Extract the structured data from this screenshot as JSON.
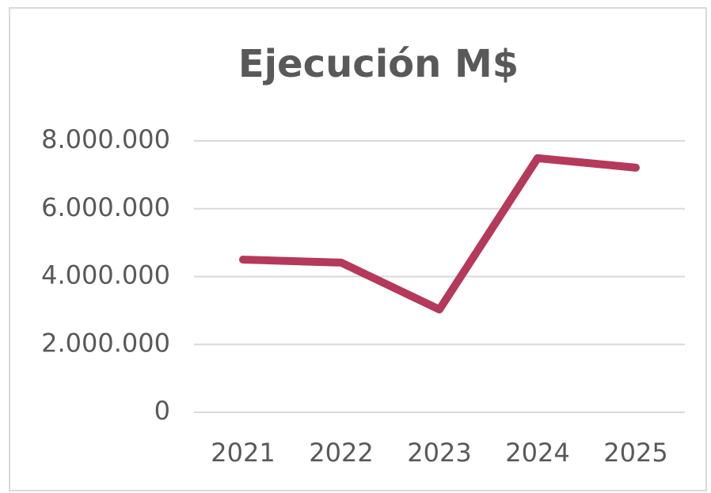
{
  "chart_data": {
    "type": "line",
    "title": "Ejecución M$",
    "categories": [
      "2021",
      "2022",
      "2023",
      "2024",
      "2025"
    ],
    "series": [
      {
        "name": "Ejecución M$",
        "color": "#b5395a",
        "values": [
          4500000,
          4410000,
          3030000,
          7490000,
          7210000
        ]
      }
    ],
    "ylim": [
      0,
      8000000
    ],
    "yticks": [
      0,
      {
        "value": 2000000,
        "label": "2.000.000"
      },
      {
        "value": 4000000,
        "label": "4.000.000"
      },
      {
        "value": 6000000,
        "label": "6.000.000"
      },
      {
        "value": 8000000,
        "label": "8.000.000"
      }
    ],
    "grid": true
  }
}
